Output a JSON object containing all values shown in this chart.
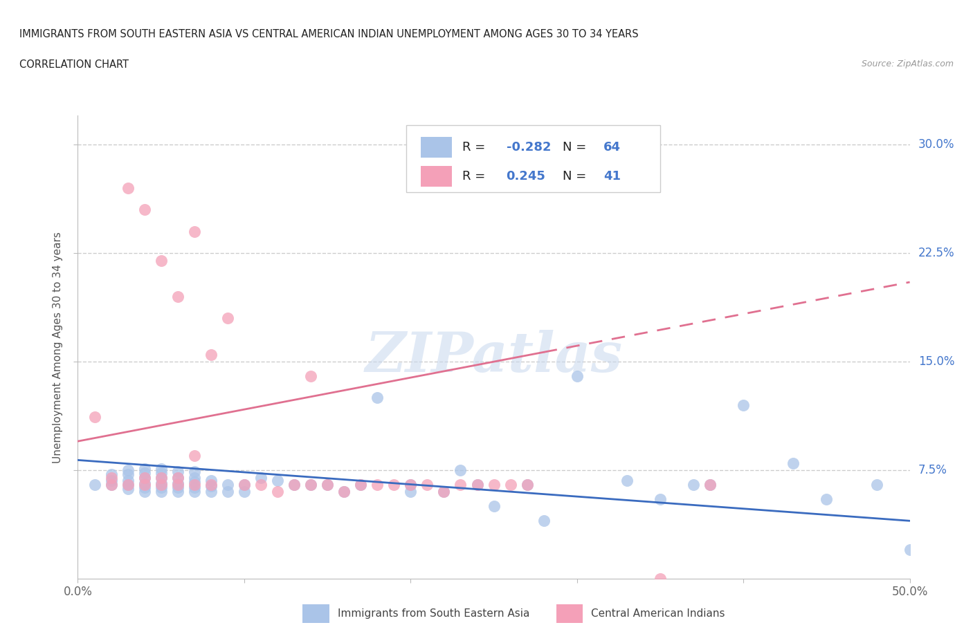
{
  "title_line1": "IMMIGRANTS FROM SOUTH EASTERN ASIA VS CENTRAL AMERICAN INDIAN UNEMPLOYMENT AMONG AGES 30 TO 34 YEARS",
  "title_line2": "CORRELATION CHART",
  "source_text": "Source: ZipAtlas.com",
  "ylabel": "Unemployment Among Ages 30 to 34 years",
  "xlim": [
    0.0,
    0.5
  ],
  "ylim": [
    0.0,
    0.32
  ],
  "xtick_values": [
    0.0,
    0.1,
    0.2,
    0.3,
    0.4,
    0.5
  ],
  "xtick_labels": [
    "0.0%",
    "",
    "",
    "",
    "",
    "50.0%"
  ],
  "ytick_values": [
    0.075,
    0.15,
    0.225,
    0.3
  ],
  "ytick_right_labels": [
    "7.5%",
    "15.0%",
    "22.5%",
    "30.0%"
  ],
  "blue_color": "#aac4e8",
  "pink_color": "#f4a0b8",
  "blue_line_color": "#3a6bbf",
  "pink_line_color": "#e07090",
  "legend_R_blue": "-0.282",
  "legend_N_blue": "64",
  "legend_R_pink": "0.245",
  "legend_N_pink": "41",
  "legend_label_blue": "Immigrants from South Eastern Asia",
  "legend_label_pink": "Central American Indians",
  "watermark": "ZIPatlas",
  "blue_points_x": [
    0.01,
    0.02,
    0.02,
    0.02,
    0.03,
    0.03,
    0.03,
    0.03,
    0.03,
    0.04,
    0.04,
    0.04,
    0.04,
    0.04,
    0.04,
    0.05,
    0.05,
    0.05,
    0.05,
    0.05,
    0.05,
    0.06,
    0.06,
    0.06,
    0.06,
    0.06,
    0.07,
    0.07,
    0.07,
    0.07,
    0.07,
    0.08,
    0.08,
    0.08,
    0.09,
    0.09,
    0.1,
    0.1,
    0.11,
    0.12,
    0.13,
    0.14,
    0.15,
    0.16,
    0.17,
    0.18,
    0.2,
    0.2,
    0.22,
    0.23,
    0.24,
    0.25,
    0.27,
    0.28,
    0.3,
    0.33,
    0.35,
    0.37,
    0.38,
    0.4,
    0.43,
    0.45,
    0.48,
    0.5
  ],
  "blue_points_y": [
    0.065,
    0.065,
    0.068,
    0.072,
    0.062,
    0.065,
    0.068,
    0.072,
    0.075,
    0.06,
    0.063,
    0.066,
    0.07,
    0.073,
    0.076,
    0.06,
    0.063,
    0.066,
    0.07,
    0.073,
    0.076,
    0.06,
    0.063,
    0.066,
    0.07,
    0.074,
    0.06,
    0.063,
    0.067,
    0.07,
    0.074,
    0.06,
    0.064,
    0.068,
    0.06,
    0.065,
    0.06,
    0.065,
    0.07,
    0.068,
    0.065,
    0.065,
    0.065,
    0.06,
    0.065,
    0.125,
    0.06,
    0.065,
    0.06,
    0.075,
    0.065,
    0.05,
    0.065,
    0.04,
    0.14,
    0.068,
    0.055,
    0.065,
    0.065,
    0.12,
    0.08,
    0.055,
    0.065,
    0.02
  ],
  "pink_points_x": [
    0.01,
    0.02,
    0.02,
    0.03,
    0.03,
    0.04,
    0.04,
    0.04,
    0.05,
    0.05,
    0.05,
    0.06,
    0.06,
    0.06,
    0.07,
    0.07,
    0.07,
    0.08,
    0.08,
    0.09,
    0.1,
    0.11,
    0.12,
    0.13,
    0.14,
    0.14,
    0.15,
    0.16,
    0.17,
    0.18,
    0.19,
    0.2,
    0.21,
    0.22,
    0.23,
    0.24,
    0.25,
    0.26,
    0.27,
    0.35,
    0.38
  ],
  "pink_points_y": [
    0.112,
    0.065,
    0.07,
    0.065,
    0.27,
    0.065,
    0.07,
    0.255,
    0.065,
    0.07,
    0.22,
    0.065,
    0.07,
    0.195,
    0.065,
    0.085,
    0.24,
    0.155,
    0.065,
    0.18,
    0.065,
    0.065,
    0.06,
    0.065,
    0.065,
    0.14,
    0.065,
    0.06,
    0.065,
    0.065,
    0.065,
    0.065,
    0.065,
    0.06,
    0.065,
    0.065,
    0.065,
    0.065,
    0.065,
    0.0,
    0.065
  ],
  "blue_trend_y_start": 0.082,
  "blue_trend_y_end": 0.04,
  "pink_trend_y_start": 0.095,
  "pink_trend_y_end": 0.205
}
